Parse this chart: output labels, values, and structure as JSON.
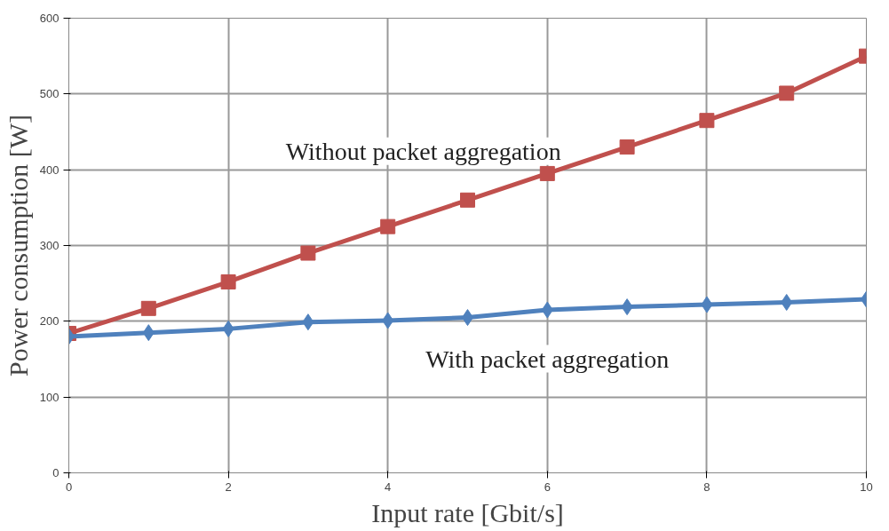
{
  "chart_data": {
    "type": "line",
    "xlabel": "Input rate [Gbit/s]",
    "ylabel": "Power consumption [W]",
    "x": [
      0,
      1,
      2,
      3,
      4,
      5,
      6,
      7,
      8,
      9,
      10
    ],
    "series": [
      {
        "name": "Without packet aggregation",
        "color": "#c0504d",
        "marker": "square",
        "values": [
          184,
          217,
          252,
          290,
          325,
          360,
          395,
          430,
          465,
          501,
          550
        ]
      },
      {
        "name": "With packet aggregation",
        "color": "#4f81bd",
        "marker": "diamond",
        "values": [
          180,
          185,
          190,
          199,
          201,
          205,
          215,
          219,
          222,
          225,
          229
        ]
      }
    ],
    "xlim": [
      0,
      10
    ],
    "xticks": [
      0,
      2,
      4,
      6,
      8,
      10
    ],
    "ylim": [
      0,
      600
    ],
    "yticks": [
      0,
      100,
      200,
      300,
      400,
      500,
      600
    ],
    "grid": true
  }
}
